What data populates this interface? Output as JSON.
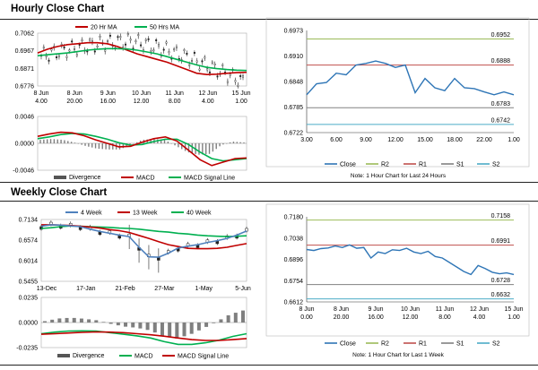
{
  "sections": {
    "hourly_title": "Hourly Close Chart",
    "weekly_title": "Weekly Close Chart"
  },
  "chart_data": [
    {
      "id": "hourly-price",
      "type": "line",
      "legend": [
        "20 Hr MA",
        "50 Hrs MA"
      ],
      "y_ticks": [
        "0.7062",
        "0.6967",
        "0.6871",
        "0.6776"
      ],
      "x_ticks": [
        [
          "8 Jun",
          "4.00"
        ],
        [
          "8 Jun",
          "20.00"
        ],
        [
          "9 Jun",
          "16.00"
        ],
        [
          "10 Jun",
          "12.00"
        ],
        [
          "11 Jun",
          "8.00"
        ],
        [
          "12 Jun",
          "4.00"
        ],
        [
          "15 Jun",
          "1.00"
        ]
      ],
      "ylim": [
        0.6776,
        0.7062
      ],
      "series": [
        {
          "name": "20 Hr MA",
          "color": "#c00000",
          "values": [
            0.6955,
            0.6975,
            0.699,
            0.7,
            0.7005,
            0.701,
            0.701,
            0.7005,
            0.699,
            0.697,
            0.695,
            0.6935,
            0.692,
            0.6905,
            0.6885,
            0.6865,
            0.6845,
            0.6838,
            0.684,
            0.6845,
            0.6848,
            0.685
          ]
        },
        {
          "name": "50 Hrs MA",
          "color": "#00b050",
          "values": [
            0.694,
            0.6945,
            0.695,
            0.6955,
            0.6962,
            0.697,
            0.6975,
            0.6978,
            0.6978,
            0.6976,
            0.697,
            0.696,
            0.695,
            0.6935,
            0.692,
            0.6905,
            0.689,
            0.6877,
            0.687,
            0.6865,
            0.6862,
            0.686
          ]
        }
      ]
    },
    {
      "id": "hourly-macd",
      "type": "bar",
      "legend": [
        "Divergence",
        "MACD",
        "MACD Signal Line"
      ],
      "y_ticks": [
        "0.0046",
        "0.0000",
        "-0.0046"
      ],
      "ylim": [
        -0.0046,
        0.0046
      ],
      "series": [
        {
          "name": "MACD",
          "color": "#c00000",
          "values": [
            0.0012,
            0.0016,
            0.0019,
            0.0018,
            0.0013,
            0.0006,
            0.0,
            -0.0006,
            -0.0005,
            0.0002,
            0.0008,
            0.0011,
            0.0004,
            -0.0012,
            -0.0028,
            -0.0038,
            -0.0032,
            -0.0026,
            -0.0025
          ]
        },
        {
          "name": "MACD Signal Line",
          "color": "#00b050",
          "values": [
            0.0008,
            0.0011,
            0.0015,
            0.0017,
            0.0016,
            0.0012,
            0.0007,
            0.0001,
            -0.0003,
            -0.0002,
            0.0003,
            0.0007,
            0.0007,
            -0.0002,
            -0.0015,
            -0.0026,
            -0.003,
            -0.0028,
            -0.0026
          ]
        }
      ]
    },
    {
      "id": "hourly-24h",
      "type": "line",
      "y_ticks": [
        "0.6973",
        "0.6910",
        "0.6848",
        "0.6785",
        "0.6722"
      ],
      "x_ticks": [
        "3.00",
        "6.00",
        "9.00",
        "12.00",
        "15.00",
        "18.00",
        "22.00",
        "1.00"
      ],
      "ylim": [
        0.6722,
        0.6973
      ],
      "levels": [
        {
          "name": "R2",
          "value": 0.6952,
          "label": "0.6952",
          "color": "#9bbb59"
        },
        {
          "name": "R1",
          "value": 0.6888,
          "label": "0.6888",
          "color": "#c0504d"
        },
        {
          "name": "S1",
          "value": 0.6783,
          "label": "0.6783",
          "color": "#808080"
        },
        {
          "name": "S2",
          "value": 0.6742,
          "label": "0.6742",
          "color": "#4bacc6"
        }
      ],
      "close": [
        0.6815,
        0.6842,
        0.6845,
        0.6868,
        0.6864,
        0.6888,
        0.6892,
        0.6898,
        0.6892,
        0.6882,
        0.6888,
        0.682,
        0.6855,
        0.6832,
        0.6825,
        0.6855,
        0.6832,
        0.683,
        0.6822,
        0.6815,
        0.6822,
        0.6815
      ],
      "legend": [
        "Close",
        "R2",
        "R1",
        "S1",
        "S2"
      ],
      "note": "Note: 1 Hour Chart for Last 24 Hours"
    },
    {
      "id": "weekly-price",
      "type": "line",
      "legend": [
        "4 Week",
        "13 Week",
        "40 Week"
      ],
      "y_ticks": [
        "0.7134",
        "0.6574",
        "0.6014",
        "0.5455"
      ],
      "x_ticks": [
        "13-Dec",
        "17-Jan",
        "21-Feb",
        "27-Mar",
        "1-May",
        "5-Jun"
      ],
      "ylim": [
        0.5455,
        0.7134
      ],
      "series": [
        {
          "name": "4 Week",
          "color": "#4f81bd",
          "values": [
            0.695,
            0.699,
            0.698,
            0.696,
            0.694,
            0.687,
            0.681,
            0.676,
            0.671,
            0.667,
            0.638,
            0.612,
            0.611,
            0.622,
            0.636,
            0.641,
            0.645,
            0.651,
            0.656,
            0.662,
            0.671,
            0.682
          ]
        },
        {
          "name": "13 Week",
          "color": "#c00000",
          "values": [
            0.699,
            0.699,
            0.698,
            0.697,
            0.695,
            0.693,
            0.69,
            0.686,
            0.683,
            0.678,
            0.67,
            0.662,
            0.653,
            0.645,
            0.64,
            0.635,
            0.634,
            0.634,
            0.635,
            0.638,
            0.643,
            0.648
          ]
        },
        {
          "name": "40 Week",
          "color": "#00b050",
          "values": [
            0.689,
            0.691,
            0.694,
            0.696,
            0.695,
            0.694,
            0.693,
            0.692,
            0.69,
            0.689,
            0.687,
            0.684,
            0.681,
            0.679,
            0.676,
            0.674,
            0.671,
            0.669,
            0.668,
            0.667,
            0.668,
            0.669
          ]
        }
      ]
    },
    {
      "id": "weekly-macd",
      "type": "bar",
      "legend": [
        "Divergence",
        "MACD",
        "MACD Signal Line"
      ],
      "y_ticks": [
        "0.0235",
        "0.0000",
        "-0.0235"
      ],
      "ylim": [
        -0.0235,
        0.0235
      ],
      "series": [
        {
          "name": "MACD",
          "color": "#00b050",
          "values": [
            -0.0105,
            -0.009,
            -0.008,
            -0.0078,
            -0.008,
            -0.0095,
            -0.011,
            -0.0125,
            -0.0145,
            -0.018,
            -0.0205,
            -0.0205,
            -0.019,
            -0.0165,
            -0.013,
            -0.0105
          ]
        },
        {
          "name": "MACD Signal Line",
          "color": "#c00000",
          "values": [
            -0.011,
            -0.0105,
            -0.0098,
            -0.0092,
            -0.0088,
            -0.009,
            -0.0095,
            -0.0105,
            -0.0115,
            -0.0128,
            -0.0145,
            -0.016,
            -0.0168,
            -0.0168,
            -0.016,
            -0.015
          ]
        }
      ]
    },
    {
      "id": "weekly-1w",
      "type": "line",
      "y_ticks": [
        "0.7180",
        "0.7038",
        "0.6896",
        "0.6754",
        "0.6612"
      ],
      "x_ticks": [
        [
          "8 Jun",
          "0.00"
        ],
        [
          "8 Jun",
          "20.00"
        ],
        [
          "9 Jun",
          "16.00"
        ],
        [
          "10 Jun",
          "12.00"
        ],
        [
          "11 Jun",
          "8.00"
        ],
        [
          "12 Jun",
          "4.00"
        ],
        [
          "15 Jun",
          "1.00"
        ]
      ],
      "ylim": [
        0.6612,
        0.718
      ],
      "levels": [
        {
          "name": "R2",
          "value": 0.7158,
          "label": "0.7158",
          "color": "#9bbb59"
        },
        {
          "name": "R1",
          "value": 0.6991,
          "label": "0.6991",
          "color": "#c0504d"
        },
        {
          "name": "S1",
          "value": 0.6728,
          "label": "0.6728",
          "color": "#808080"
        },
        {
          "name": "S2",
          "value": 0.6632,
          "label": "0.6632",
          "color": "#4bacc6"
        }
      ],
      "close": [
        0.6962,
        0.6955,
        0.6968,
        0.6972,
        0.6985,
        0.6975,
        0.6992,
        0.697,
        0.6975,
        0.6905,
        0.6945,
        0.6935,
        0.696,
        0.6955,
        0.697,
        0.6945,
        0.6935,
        0.695,
        0.6915,
        0.6905,
        0.6875,
        0.6845,
        0.6815,
        0.6795,
        0.6855,
        0.6835,
        0.681,
        0.68,
        0.6806,
        0.6795
      ],
      "legend": [
        "Close",
        "R2",
        "R1",
        "S1",
        "S2"
      ],
      "note": "Note: 1 Hour Chart for Last 1 Week"
    }
  ]
}
